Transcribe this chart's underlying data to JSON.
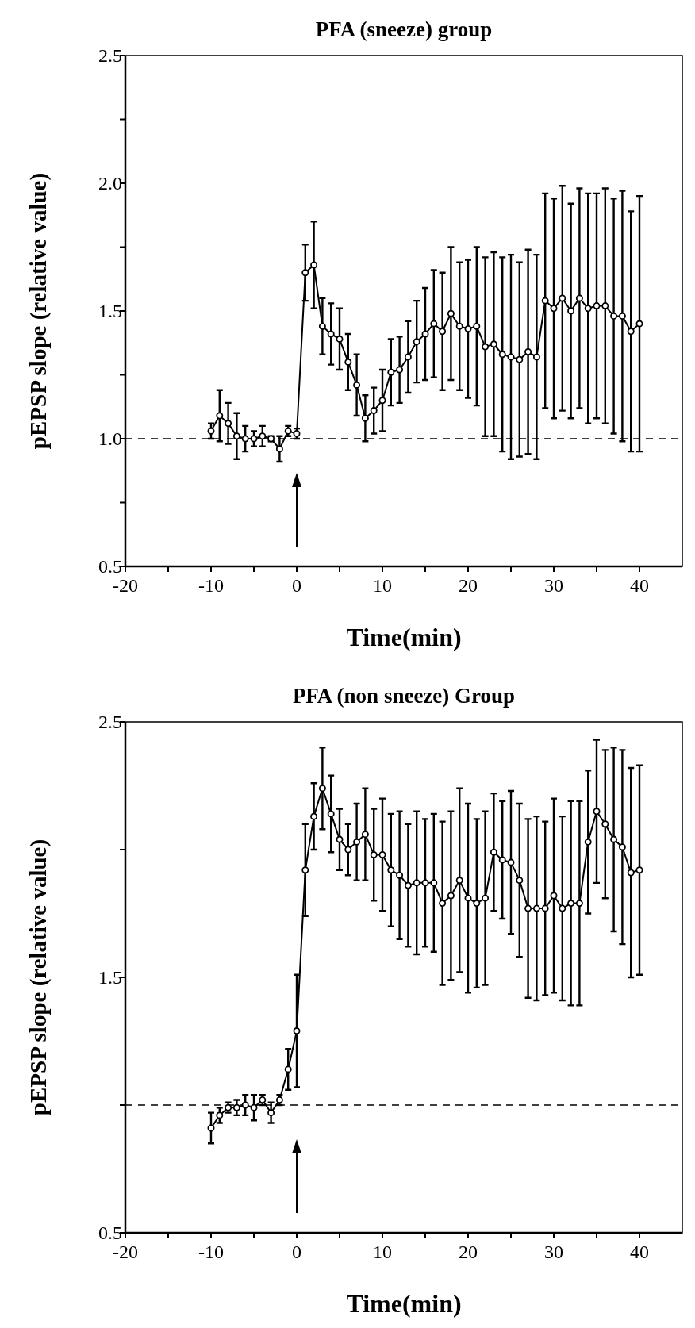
{
  "chart_data": [
    {
      "type": "line",
      "title": "PFA (sneeze) group",
      "xlabel": "Time(min)",
      "ylabel": "pEPSP slope (relative value)",
      "x": [
        -10,
        -9,
        -8,
        -7,
        -6,
        -5,
        -4,
        -3,
        -2,
        -1,
        0,
        1,
        2,
        3,
        4,
        5,
        6,
        7,
        8,
        9,
        10,
        11,
        12,
        13,
        14,
        15,
        16,
        17,
        18,
        19,
        20,
        21,
        22,
        23,
        24,
        25,
        26,
        27,
        28,
        29,
        30,
        31,
        32,
        33,
        34,
        35,
        36,
        37,
        38,
        39,
        40
      ],
      "series": [
        {
          "color": "#000000",
          "values": [
            1.03,
            1.09,
            1.06,
            1.01,
            1.0,
            1.0,
            1.01,
            1.0,
            0.96,
            1.03,
            1.02,
            1.65,
            1.68,
            1.44,
            1.41,
            1.39,
            1.3,
            1.21,
            1.08,
            1.11,
            1.15,
            1.26,
            1.27,
            1.32,
            1.38,
            1.41,
            1.45,
            1.42,
            1.49,
            1.44,
            1.43,
            1.44,
            1.36,
            1.37,
            1.33,
            1.32,
            1.31,
            1.34,
            1.32,
            1.54,
            1.51,
            1.55,
            1.5,
            1.55,
            1.51,
            1.52,
            1.52,
            1.48,
            1.48,
            1.42,
            1.45
          ],
          "errors": [
            0.03,
            0.1,
            0.08,
            0.09,
            0.05,
            0.03,
            0.04,
            0.01,
            0.05,
            0.02,
            0.02,
            0.11,
            0.17,
            0.11,
            0.12,
            0.12,
            0.11,
            0.12,
            0.09,
            0.09,
            0.12,
            0.13,
            0.13,
            0.14,
            0.16,
            0.18,
            0.21,
            0.23,
            0.26,
            0.25,
            0.27,
            0.31,
            0.35,
            0.36,
            0.38,
            0.4,
            0.38,
            0.4,
            0.4,
            0.42,
            0.43,
            0.44,
            0.42,
            0.43,
            0.45,
            0.44,
            0.46,
            0.46,
            0.49,
            0.47,
            0.5
          ]
        }
      ],
      "xlim": [
        -20,
        45
      ],
      "xticks": [
        -20,
        {
          "value": -15,
          "label": null
        },
        -10,
        {
          "value": -5,
          "label": null
        },
        0,
        {
          "value": 5,
          "label": null
        },
        10,
        {
          "value": 15,
          "label": null
        },
        20,
        {
          "value": 25,
          "label": null
        },
        30,
        {
          "value": 35,
          "label": null
        },
        40
      ],
      "ylim": [
        0.5,
        2.5
      ],
      "yticks": [
        {
          "value": 0.5,
          "label": "0.5"
        },
        {
          "value": 0.75,
          "label": null
        },
        {
          "value": 1.0,
          "label": "1.0"
        },
        {
          "value": 1.25,
          "label": null
        },
        {
          "value": 1.5,
          "label": "1.5"
        },
        {
          "value": 1.75,
          "label": null
        },
        {
          "value": 2.0,
          "label": "2.0"
        },
        {
          "value": 2.25,
          "label": null
        },
        {
          "value": 2.5,
          "label": "2.5"
        }
      ],
      "ref_lines": [
        {
          "axis": "y",
          "value": 1.0,
          "line_style": "dashed",
          "color": "#000000"
        }
      ],
      "marker": "circle",
      "line_style": "solid",
      "grid": false
    },
    {
      "type": "line",
      "title": "PFA (non sneeze) Group",
      "xlabel": "Time(min)",
      "ylabel": "pEPSP slope (relative value)",
      "x": [
        -10,
        -9,
        -8,
        -7,
        -6,
        -5,
        -4,
        -3,
        -2,
        -1,
        0,
        1,
        2,
        3,
        4,
        5,
        6,
        7,
        8,
        9,
        10,
        11,
        12,
        13,
        14,
        15,
        16,
        17,
        18,
        19,
        20,
        21,
        22,
        23,
        24,
        25,
        26,
        27,
        28,
        29,
        30,
        31,
        32,
        33,
        34,
        35,
        36,
        37,
        38,
        39,
        40
      ],
      "series": [
        {
          "color": "#000000",
          "values": [
            0.91,
            0.96,
            0.99,
            0.99,
            1.0,
            0.99,
            1.02,
            0.97,
            1.02,
            1.14,
            1.29,
            1.92,
            2.13,
            2.24,
            2.14,
            2.04,
            2.0,
            2.03,
            2.06,
            1.98,
            1.98,
            1.92,
            1.9,
            1.86,
            1.87,
            1.87,
            1.87,
            1.79,
            1.82,
            1.88,
            1.81,
            1.79,
            1.81,
            1.99,
            1.96,
            1.95,
            1.88,
            1.77,
            1.77,
            1.77,
            1.82,
            1.77,
            1.79,
            1.79,
            2.03,
            2.15,
            2.1,
            2.04,
            2.01,
            1.91,
            1.92
          ],
          "errors": [
            0.06,
            0.03,
            0.02,
            0.03,
            0.04,
            0.05,
            0.02,
            0.04,
            0.02,
            0.08,
            0.22,
            0.18,
            0.13,
            0.16,
            0.15,
            0.12,
            0.1,
            0.15,
            0.18,
            0.18,
            0.22,
            0.22,
            0.25,
            0.24,
            0.28,
            0.25,
            0.27,
            0.32,
            0.33,
            0.36,
            0.37,
            0.33,
            0.34,
            0.23,
            0.23,
            0.28,
            0.3,
            0.35,
            0.36,
            0.34,
            0.38,
            0.36,
            0.4,
            0.4,
            0.28,
            0.28,
            0.29,
            0.36,
            0.38,
            0.41,
            0.41
          ]
        }
      ],
      "xlim": [
        -20,
        45
      ],
      "xticks": [
        -20,
        {
          "value": -15,
          "label": null
        },
        -10,
        {
          "value": -5,
          "label": null
        },
        0,
        {
          "value": 5,
          "label": null
        },
        10,
        {
          "value": 15,
          "label": null
        },
        20,
        {
          "value": 25,
          "label": null
        },
        30,
        {
          "value": 35,
          "label": null
        },
        40
      ],
      "ylim": [
        0.5,
        2.5
      ],
      "yticks": [
        {
          "value": 0.5,
          "label": "0.5"
        },
        {
          "value": 1.0,
          "label": null
        },
        {
          "value": 1.5,
          "label": "1.5"
        },
        {
          "value": 2.0,
          "label": null
        },
        {
          "value": 2.5,
          "label": "2.5"
        }
      ],
      "ref_lines": [
        {
          "axis": "y",
          "value": 1.0,
          "line_style": "dashed",
          "color": "#000000"
        }
      ],
      "marker": "circle",
      "line_style": "solid",
      "grid": false
    }
  ]
}
